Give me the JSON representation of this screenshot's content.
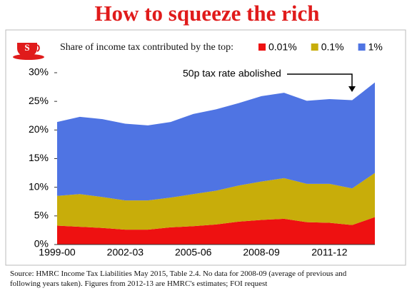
{
  "chart_data": {
    "type": "stacked-area",
    "title": "How to squeeze the rich",
    "subtitle": "Share of income tax contributed by the top:",
    "annotation": "50p tax rate abolished",
    "source": "Source: HMRC Income Tax Liabilities May 2015, Table 2.4. No data for 2008-09 (average of previous and following years taken). Figures from 2012-13 are HMRC's estimates; FOI request",
    "categories": [
      "1999-00",
      null,
      null,
      "2002-03",
      null,
      null,
      "2005-06",
      null,
      null,
      "2008-09",
      null,
      null,
      "2011-12",
      null,
      null
    ],
    "series": [
      {
        "name": "0.01%",
        "color": "#ee1111",
        "values": [
          3.3,
          3.1,
          2.9,
          2.6,
          2.6,
          3.0,
          3.2,
          3.5,
          4.0,
          4.3,
          4.5,
          3.9,
          3.8,
          3.4,
          4.8
        ]
      },
      {
        "name": "0.1%",
        "color": "#c8ad0a",
        "values": [
          5.2,
          5.7,
          5.4,
          5.1,
          5.1,
          5.2,
          5.6,
          5.9,
          6.3,
          6.7,
          7.1,
          6.7,
          6.8,
          6.4,
          7.7
        ]
      },
      {
        "name": "1%",
        "color": "#4f74e3",
        "values": [
          12.9,
          13.5,
          13.6,
          13.4,
          13.1,
          13.2,
          14.0,
          14.2,
          14.4,
          14.9,
          14.9,
          14.5,
          14.8,
          15.4,
          15.8
        ]
      }
    ],
    "ylim": [
      0,
      30
    ],
    "yticks": [
      {
        "value": 0,
        "label": "0%"
      },
      {
        "value": 5,
        "label": "5%"
      },
      {
        "value": 10,
        "label": "10%"
      },
      {
        "value": 15,
        "label": "15%"
      },
      {
        "value": 20,
        "label": "20%"
      },
      {
        "value": 25,
        "label": "25%"
      },
      {
        "value": 30,
        "label": "30%"
      }
    ]
  }
}
